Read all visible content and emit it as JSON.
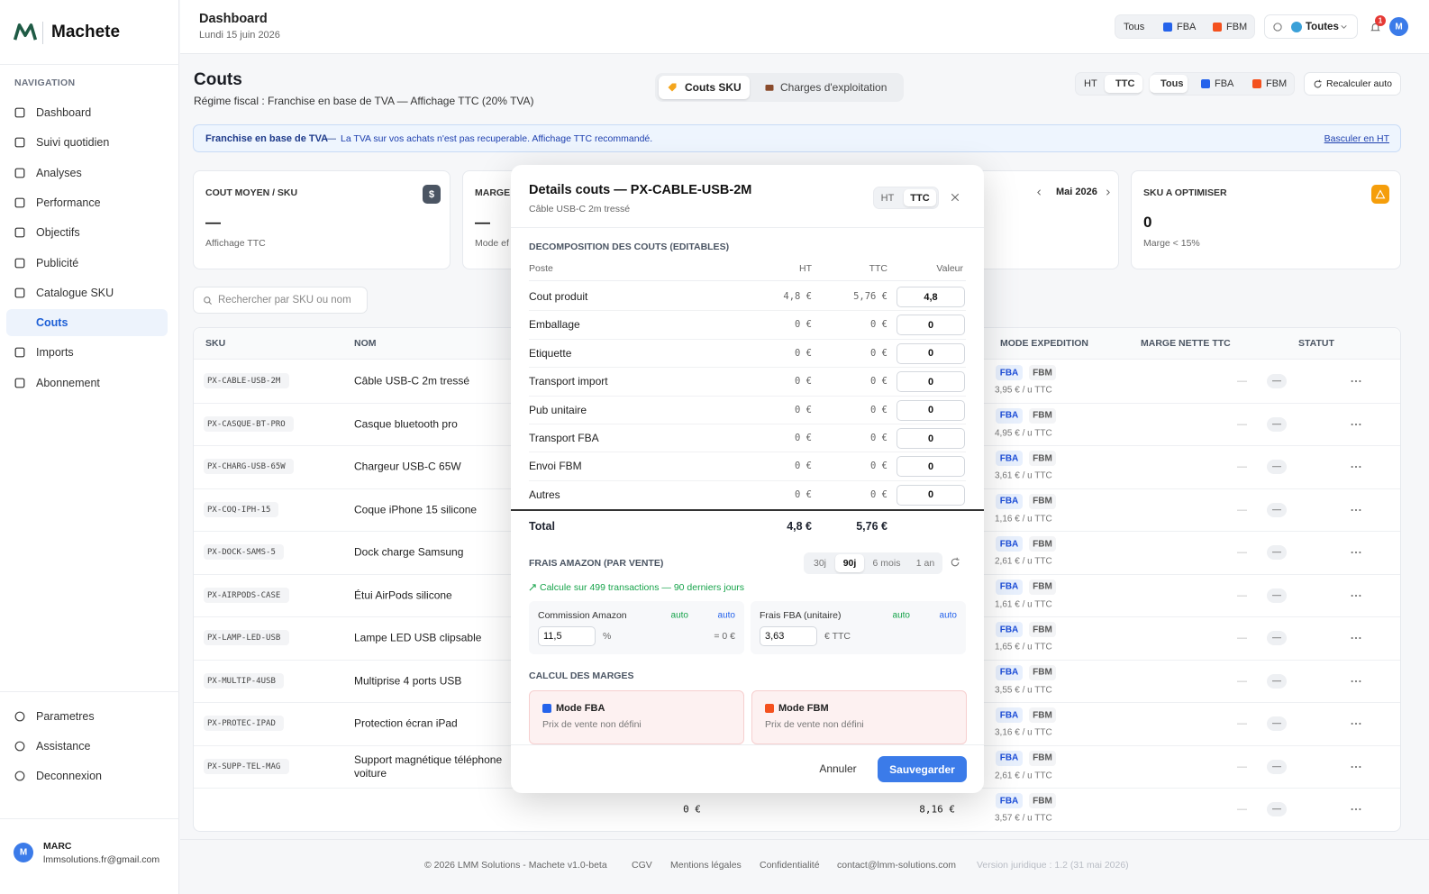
{
  "brand": "Machete",
  "sidebar": {
    "section": "NAVIGATION",
    "nav": [
      "Dashboard",
      "Suivi quotidien",
      "Analyses",
      "Performance",
      "Objectifs",
      "Publicité",
      "Catalogue SKU",
      "Couts",
      "Imports",
      "Abonnement"
    ],
    "active": 7,
    "bottom": [
      "Parametres",
      "Assistance",
      "Deconnexion"
    ],
    "user": {
      "initial": "M",
      "name": "MARC",
      "email": "lmmsolutions.fr@gmail.com"
    }
  },
  "header": {
    "title": "Dashboard",
    "date": "Lundi 15 juin 2026",
    "filters": [
      "Tous",
      "FBA",
      "FBM"
    ],
    "market": "Toutes",
    "notifications": "1",
    "avatar": "M"
  },
  "page": {
    "title": "Couts",
    "subtitle": "Régime fiscal : Franchise en base de TVA — Affichage TTC (20% TVA)",
    "tabs": [
      "Couts SKU",
      "Charges d'exploitation"
    ],
    "tax": [
      "HT",
      "TTC"
    ],
    "filters": [
      "Tous",
      "FBA",
      "FBM"
    ],
    "recalc": "Recalculer auto"
  },
  "banner": {
    "title": "Franchise en base de TVA",
    "sep": "—",
    "text": "La TVA sur vos achats n'est pas recuperable. Affichage TTC recommandé.",
    "link": "Basculer en HT"
  },
  "cards": [
    {
      "label": "COUT MOYEN / SKU",
      "value": "—",
      "sub": "Affichage TTC",
      "icon": "$"
    },
    {
      "label": "MARGE",
      "value": "—",
      "sub": "Mode ef"
    },
    {
      "month": "Mai 2026"
    },
    {
      "label": "SKU A OPTIMISER",
      "value": "0",
      "sub": "Marge < 15%"
    }
  ],
  "search": "Rechercher par SKU ou nom",
  "table": {
    "headers": [
      "SKU",
      "NOM",
      "MODE EXPEDITION",
      "MARGE NETTE TTC",
      "STATUT"
    ],
    "modes": [
      "FBA",
      "FBM"
    ],
    "empty": "—",
    "rows": [
      {
        "sku": "PX-CABLE-USB-2M",
        "name": "Câble USB-C 2m tressé",
        "fee": "3,95 € / u TTC"
      },
      {
        "sku": "PX-CASQUE-BT-PRO",
        "name": "Casque bluetooth pro",
        "fee": "4,95 € / u TTC"
      },
      {
        "sku": "PX-CHARG-USB-65W",
        "name": "Chargeur USB-C 65W",
        "fee": "3,61 € / u TTC"
      },
      {
        "sku": "PX-COQ-IPH-15",
        "name": "Coque iPhone 15 silicone",
        "fee": "1,16 € / u TTC"
      },
      {
        "sku": "PX-DOCK-SAMS-5",
        "name": "Dock charge Samsung",
        "fee": "2,61 € / u TTC"
      },
      {
        "sku": "PX-AIRPODS-CASE",
        "name": "Étui AirPods silicone",
        "fee": "1,61 € / u TTC"
      },
      {
        "sku": "PX-LAMP-LED-USB",
        "name": "Lampe LED USB clipsable",
        "fee": "1,65 € / u TTC"
      },
      {
        "sku": "PX-MULTIP-4USB",
        "name": "Multiprise 4 ports USB",
        "fee": "3,55 € / u TTC"
      },
      {
        "sku": "PX-PROTEC-IPAD",
        "name": "Protection écran iPad",
        "fee": "3,16 € / u TTC"
      },
      {
        "sku": "PX-SUPP-TEL-MAG",
        "name": "Support magnétique téléphone voiture",
        "fee": "2,61 € / u TTC"
      },
      {
        "cost": "0 €",
        "price": "8,16 €",
        "fee": "3,57 € / u TTC"
      }
    ]
  },
  "footer": [
    "© 2026 LMM Solutions - Machete v1.0-beta",
    "CGV",
    "Mentions légales",
    "Confidentialité",
    "contact@lmm-solutions.com",
    "Version juridique : 1.2 (31 mai 2026)"
  ],
  "modal": {
    "title": "Details couts — PX-CABLE-USB-2M",
    "subtitle": "Câble USB-C 2m tressé",
    "tax": [
      "HT",
      "TTC"
    ],
    "section": "DECOMPOSITION DES COUTS (EDITABLES)",
    "columns": [
      "Poste",
      "HT",
      "TTC",
      "Valeur"
    ],
    "rows": [
      {
        "label": "Cout produit",
        "ht": "4,8 €",
        "ttc": "5,76 €",
        "value": "4,8"
      },
      {
        "label": "Emballage",
        "ht": "0 €",
        "ttc": "0 €",
        "value": "0"
      },
      {
        "label": "Etiquette",
        "ht": "0 €",
        "ttc": "0 €",
        "value": "0"
      },
      {
        "label": "Transport import",
        "ht": "0 €",
        "ttc": "0 €",
        "value": "0"
      },
      {
        "label": "Pub unitaire",
        "ht": "0 €",
        "ttc": "0 €",
        "value": "0"
      },
      {
        "label": "Transport FBA",
        "ht": "0 €",
        "ttc": "0 €",
        "value": "0"
      },
      {
        "label": "Envoi FBM",
        "ht": "0 €",
        "ttc": "0 €",
        "value": "0"
      },
      {
        "label": "Autres",
        "ht": "0 €",
        "ttc": "0 €",
        "value": "0"
      }
    ],
    "total": {
      "label": "Total",
      "ht": "4,8 €",
      "ttc": "5,76 €"
    },
    "fees_title": "FRAIS AMAZON (PAR VENTE)",
    "periods": [
      "30j",
      "90j",
      "6 mois",
      "1 an"
    ],
    "period_active": 1,
    "fees_note": "Calcule sur 499 transactions — 90 derniers jours",
    "fees": [
      {
        "label": "Commission Amazon",
        "auto": "auto",
        "auto2": "auto",
        "value": "11,5",
        "unit": "%",
        "result": "= 0 €"
      },
      {
        "label": "Frais FBA (unitaire)",
        "auto": "auto",
        "auto2": "auto",
        "value": "3,63",
        "unit": "€ TTC"
      }
    ],
    "margins_title": "CALCUL DES MARGES",
    "margins": [
      {
        "label": "Mode FBA",
        "sub": "Prix de vente non défini",
        "color": "#2563eb"
      },
      {
        "label": "Mode FBM",
        "sub": "Prix de vente non défini",
        "color": "#f4511e"
      }
    ],
    "cancel": "Annuler",
    "save": "Sauvegarder"
  }
}
